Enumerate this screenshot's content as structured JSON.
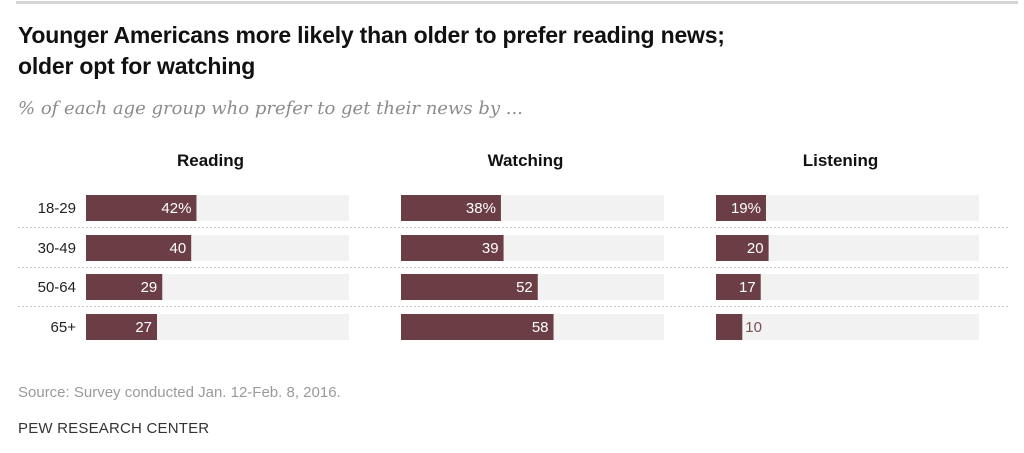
{
  "header": {
    "title_line1": "Younger Americans more likely than older to prefer reading news;",
    "title_line2": "older opt for watching",
    "subtitle": "% of each age group who prefer to get their news by ..."
  },
  "footer": {
    "source": "Source: Survey conducted Jan. 12-Feb. 8, 2016.",
    "organization": "PEW RESEARCH CENTER"
  },
  "colors": {
    "bar": "#6b3d45",
    "track": "#f2f2f2",
    "label_inside": "#ffffff",
    "label_outside": "#7a4f57",
    "separator": "#c8c8c8"
  },
  "chart_data": {
    "type": "bar",
    "orientation": "horizontal",
    "title": "Younger Americans more likely than older to prefer reading news; older opt for watching",
    "subtitle": "% of each age group who prefer to get their news by ...",
    "categories": [
      "18-29",
      "30-49",
      "50-64",
      "65+"
    ],
    "series": [
      {
        "name": "Reading",
        "values": [
          42,
          40,
          29,
          27
        ],
        "labels": [
          "42%",
          "40",
          "29",
          "27"
        ]
      },
      {
        "name": "Watching",
        "values": [
          38,
          39,
          52,
          58
        ],
        "labels": [
          "38%",
          "39",
          "52",
          "58"
        ]
      },
      {
        "name": "Listening",
        "values": [
          19,
          20,
          17,
          10
        ],
        "labels": [
          "19%",
          "20",
          "17",
          "10"
        ]
      }
    ],
    "xlim": [
      0,
      100
    ],
    "unit": "%",
    "grid": false,
    "legend": "none (panel headers)",
    "source": "Source: Survey conducted Jan. 12-Feb. 8, 2016."
  }
}
